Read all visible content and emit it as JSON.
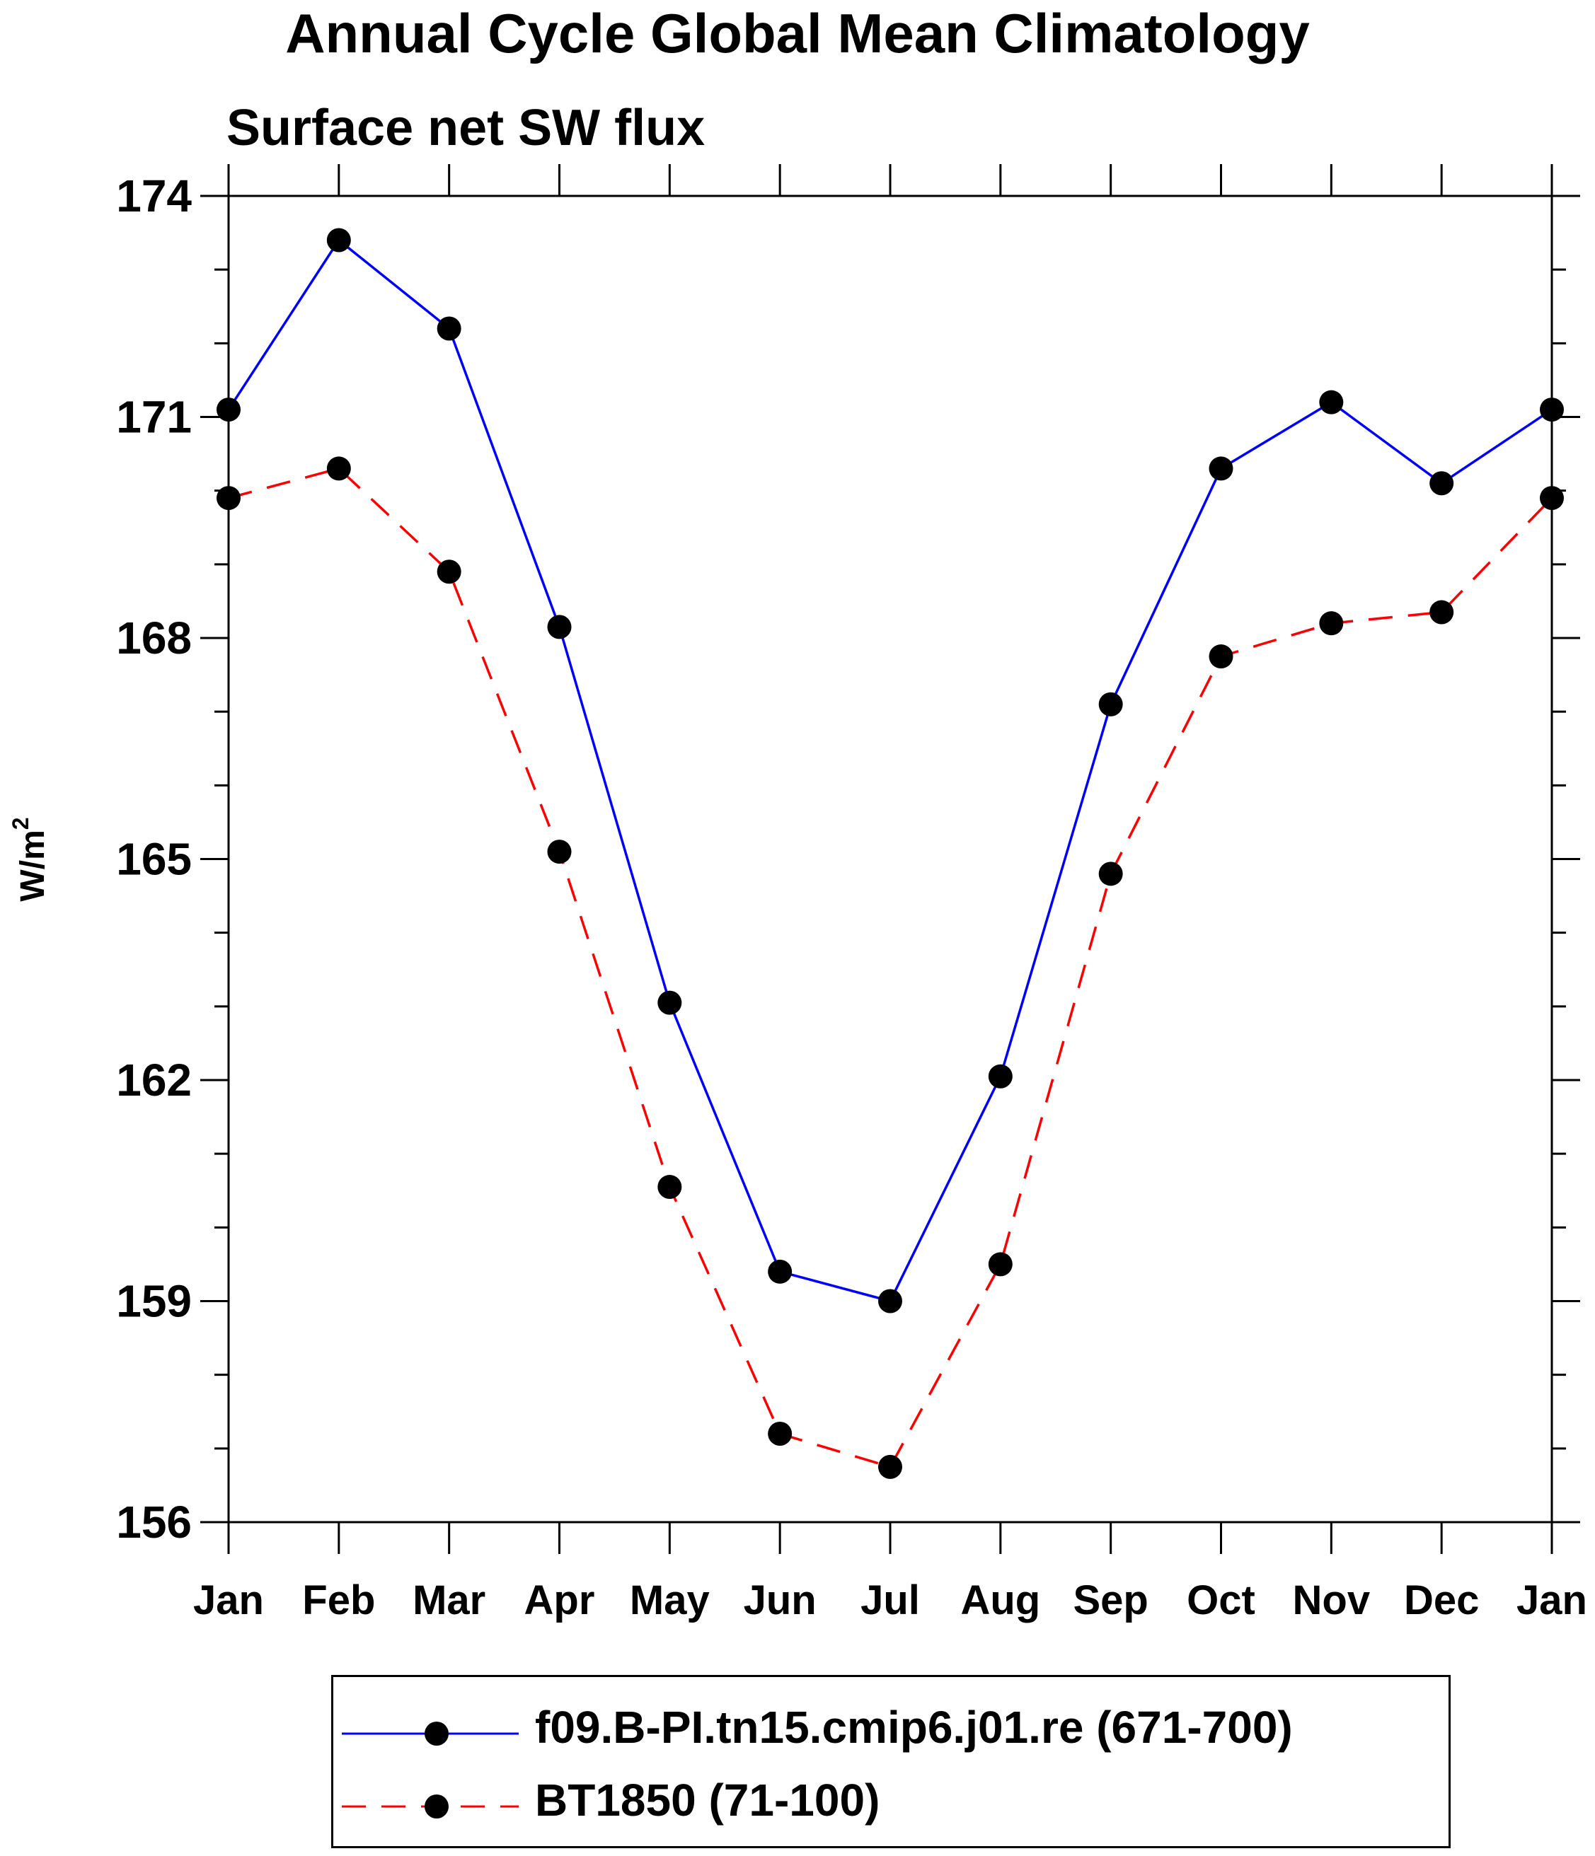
{
  "chart_data": {
    "type": "line",
    "title": "Annual Cycle Global Mean Climatology",
    "subtitle": "Surface net SW flux",
    "ylabel_base": "W/m",
    "ylabel_sup": "2",
    "categories": [
      "Jan",
      "Feb",
      "Mar",
      "Apr",
      "May",
      "Jun",
      "Jul",
      "Aug",
      "Sep",
      "Oct",
      "Nov",
      "Dec",
      "Jan"
    ],
    "ylim": [
      156,
      174
    ],
    "yticks": [
      156,
      159,
      162,
      165,
      168,
      171,
      174
    ],
    "series": [
      {
        "name": "f09.B-PI.tn15.cmip6.j01.re (671-700)",
        "color": "#0000ff",
        "dash": "solid",
        "values": [
          171.1,
          173.4,
          172.2,
          168.15,
          163.05,
          159.4,
          159.0,
          162.05,
          167.1,
          170.3,
          171.2,
          170.1,
          171.1
        ]
      },
      {
        "name": "BT1850 (71-100)",
        "color": "#ff0000",
        "dash": "dashed",
        "values": [
          169.9,
          170.3,
          168.9,
          165.1,
          160.55,
          157.2,
          156.75,
          159.5,
          164.8,
          167.75,
          168.2,
          168.35,
          169.9
        ]
      }
    ],
    "grid": false,
    "legend_position": "bottom"
  }
}
